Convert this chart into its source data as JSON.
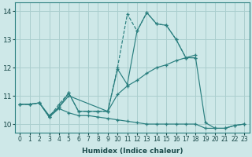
{
  "xlabel": "Humidex (Indice chaleur)",
  "bg_color": "#cee8e8",
  "grid_color": "#aacece",
  "line_color": "#2a7f7f",
  "xlim": [
    -0.5,
    23.5
  ],
  "ylim": [
    9.7,
    14.3
  ],
  "xticks": [
    0,
    1,
    2,
    3,
    4,
    5,
    6,
    7,
    8,
    9,
    10,
    11,
    12,
    13,
    14,
    15,
    16,
    17,
    18,
    19,
    20,
    21,
    22,
    23
  ],
  "yticks": [
    10,
    11,
    12,
    13,
    14
  ],
  "series": [
    {
      "x": [
        0,
        1,
        2,
        3,
        4,
        5,
        6,
        7,
        8,
        9,
        10,
        11,
        12,
        13,
        14,
        15,
        16,
        17,
        18
      ],
      "y": [
        10.7,
        10.7,
        10.75,
        10.25,
        10.7,
        11.1,
        10.45,
        10.45,
        10.45,
        10.45,
        12.0,
        13.9,
        13.3,
        13.95,
        13.55,
        13.5,
        13.0,
        12.35,
        12.35
      ],
      "linestyle": "--"
    },
    {
      "x": [
        0,
        1,
        2,
        3,
        4,
        5,
        9,
        10,
        11,
        12,
        13,
        14,
        15,
        16,
        17,
        18
      ],
      "y": [
        10.7,
        10.7,
        10.75,
        10.3,
        10.6,
        11.0,
        10.45,
        11.05,
        11.35,
        11.55,
        11.8,
        12.0,
        12.1,
        12.25,
        12.35,
        12.45
      ],
      "linestyle": "-"
    },
    {
      "x": [
        0,
        1,
        2,
        3,
        4,
        5,
        6,
        7,
        8,
        9,
        10,
        11,
        12,
        13,
        14,
        15,
        16,
        17,
        18,
        19,
        20,
        21,
        22,
        23
      ],
      "y": [
        10.7,
        10.7,
        10.75,
        10.25,
        10.55,
        10.4,
        10.3,
        10.3,
        10.25,
        10.2,
        10.15,
        10.1,
        10.05,
        10.0,
        10.0,
        10.0,
        10.0,
        10.0,
        10.0,
        9.85,
        9.85,
        9.85,
        9.95,
        10.0
      ],
      "linestyle": "-"
    },
    {
      "x": [
        2,
        3,
        4,
        5,
        6,
        7,
        8,
        9,
        10,
        11,
        12,
        13,
        14,
        15,
        16,
        17,
        18,
        19,
        20,
        21,
        22,
        23
      ],
      "y": [
        10.75,
        10.25,
        10.6,
        11.1,
        10.45,
        10.45,
        10.45,
        10.45,
        11.95,
        11.4,
        13.3,
        13.95,
        13.55,
        13.5,
        13.0,
        12.35,
        12.35,
        10.05,
        9.85,
        9.85,
        9.95,
        10.0
      ],
      "linestyle": "-"
    }
  ]
}
